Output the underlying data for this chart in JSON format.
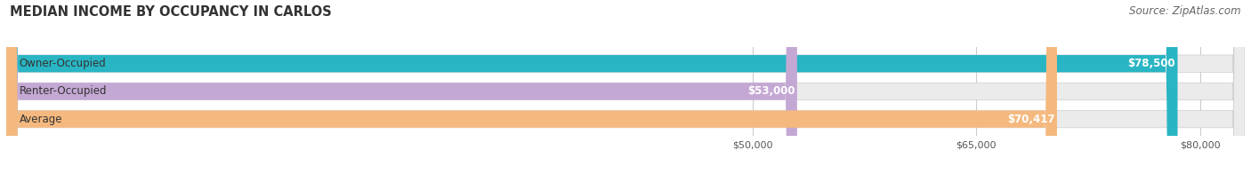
{
  "title": "MEDIAN INCOME BY OCCUPANCY IN CARLOS",
  "source": "Source: ZipAtlas.com",
  "categories": [
    "Owner-Occupied",
    "Renter-Occupied",
    "Average"
  ],
  "values": [
    78500,
    53000,
    70417
  ],
  "value_labels": [
    "$78,500",
    "$53,000",
    "$70,417"
  ],
  "bar_colors": [
    "#29b5c3",
    "#c4a8d4",
    "#f5b97f"
  ],
  "bar_bg_color": "#ebebeb",
  "x_min": 0,
  "x_max": 83000,
  "x_ticks": [
    50000,
    65000,
    80000
  ],
  "x_tick_labels": [
    "$50,000",
    "$65,000",
    "$80,000"
  ],
  "bar_height": 0.62,
  "bar_gap": 0.38,
  "title_fontsize": 10.5,
  "source_fontsize": 8.5,
  "label_fontsize": 8.5,
  "value_fontsize": 8.5,
  "rounding_size": 800
}
